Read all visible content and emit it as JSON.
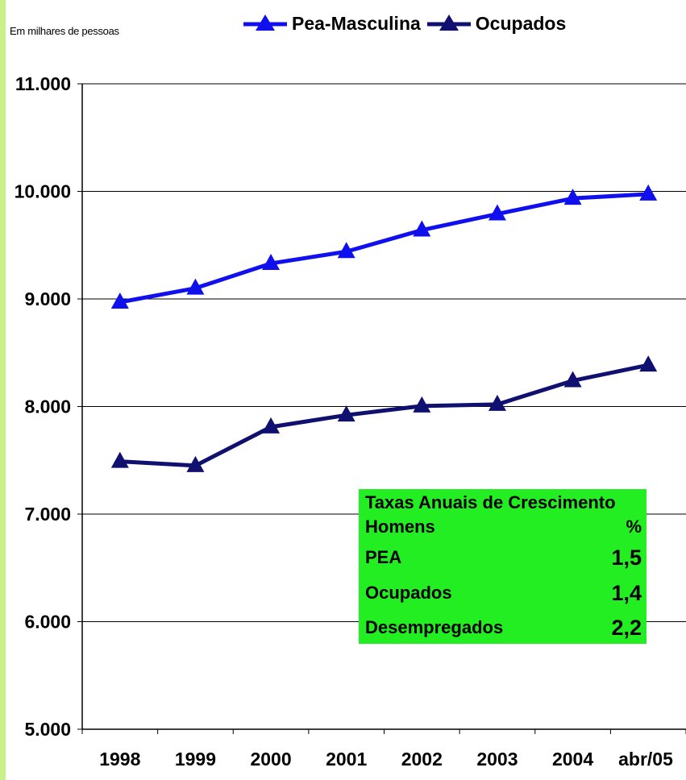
{
  "unit_note": "Em milhares de pessoas",
  "colors": {
    "pea_masculina": "#1010ee",
    "ocupados": "#101070",
    "growth_box": "#22ee22",
    "left_strip": "#c9f08a"
  },
  "chart_data": {
    "type": "line",
    "categories": [
      "1998",
      "1999",
      "2000",
      "2001",
      "2002",
      "2003",
      "2004",
      "abr/05"
    ],
    "series": [
      {
        "name": "Pea-Masculina",
        "values": [
          8970,
          9100,
          9330,
          9440,
          9640,
          9790,
          9935,
          9975
        ]
      },
      {
        "name": "Ocupados",
        "values": [
          7490,
          7450,
          7810,
          7920,
          8005,
          8020,
          8240,
          8385
        ]
      }
    ],
    "ylim": [
      5000,
      11000
    ],
    "yticks": [
      "5.000",
      "6.000",
      "7.000",
      "8.000",
      "9.000",
      "10.000",
      "11.000"
    ],
    "grid": true,
    "legend_position": "top"
  },
  "growth_table": {
    "title": "Taxas Anuais de Crescimento",
    "header": {
      "label": "Homens",
      "value": "%"
    },
    "rows": [
      {
        "label": "PEA",
        "value": "1,5"
      },
      {
        "label": "Ocupados",
        "value": "1,4"
      },
      {
        "label": "Desempregados",
        "value": "2,2"
      }
    ]
  }
}
